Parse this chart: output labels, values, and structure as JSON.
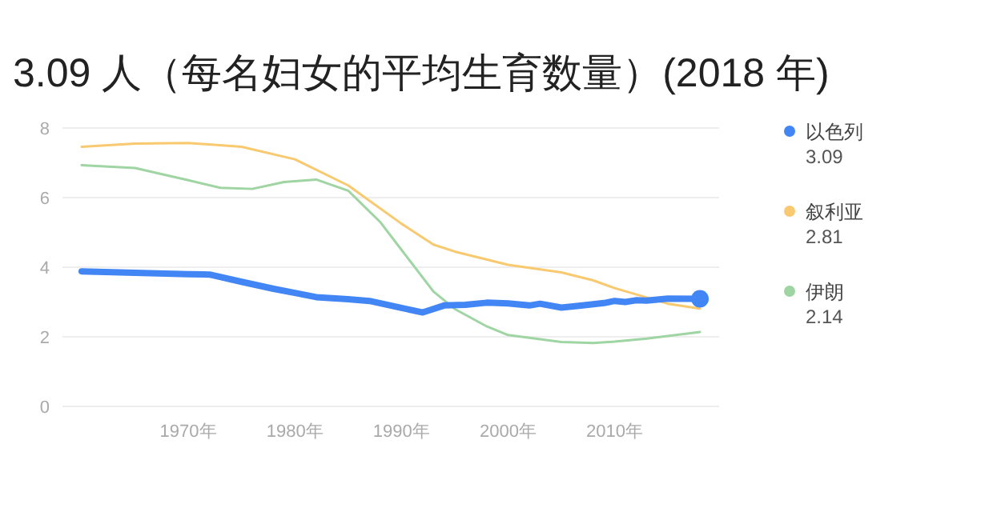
{
  "chart_data": {
    "type": "line",
    "title": "3.09 人（每名妇女的平均生育数量）(2018 年)",
    "xlim": [
      1958.2,
      2019.8
    ],
    "xticks": [
      {
        "value": 1970,
        "label": "1970年"
      },
      {
        "value": 1980,
        "label": "1980年"
      },
      {
        "value": 1990,
        "label": "1990年"
      },
      {
        "value": 2000,
        "label": "2000年"
      },
      {
        "value": 2010,
        "label": "2010年"
      }
    ],
    "ylim": [
      0,
      8
    ],
    "yticks": [
      0,
      2,
      4,
      6,
      8
    ],
    "grid": "y",
    "legend": "right",
    "series": [
      {
        "name": "以色列",
        "color": "#4285f4",
        "x": [
          1960,
          1965,
          1970,
          1972,
          1975,
          1978,
          1980,
          1982,
          1985,
          1987,
          1990,
          1992,
          1994,
          1996,
          1998,
          2000,
          2002,
          2003,
          2005,
          2007,
          2009,
          2010,
          2011,
          2012,
          2013,
          2015,
          2018
        ],
        "values": [
          3.88,
          3.84,
          3.8,
          3.79,
          3.58,
          3.38,
          3.26,
          3.14,
          3.08,
          3.03,
          2.83,
          2.7,
          2.9,
          2.92,
          2.98,
          2.96,
          2.9,
          2.95,
          2.84,
          2.9,
          2.97,
          3.03,
          3.0,
          3.05,
          3.04,
          3.1,
          3.09
        ]
      },
      {
        "name": "叙利亚",
        "color": "#f9c96f",
        "x": [
          1960,
          1965,
          1970,
          1975,
          1980,
          1985,
          1990,
          1993,
          1995,
          2000,
          2005,
          2008,
          2010,
          2015,
          2018
        ],
        "values": [
          7.46,
          7.55,
          7.57,
          7.46,
          7.1,
          6.35,
          5.25,
          4.65,
          4.45,
          4.07,
          3.85,
          3.62,
          3.4,
          2.95,
          2.81
        ]
      },
      {
        "name": "伊朗",
        "color": "#9fd4a3",
        "x": [
          1960,
          1965,
          1970,
          1973,
          1976,
          1979,
          1982,
          1985,
          1988,
          1990,
          1993,
          1995,
          1998,
          2000,
          2005,
          2008,
          2010,
          2013,
          2018
        ],
        "values": [
          6.93,
          6.85,
          6.5,
          6.28,
          6.25,
          6.45,
          6.52,
          6.2,
          5.3,
          4.5,
          3.3,
          2.8,
          2.3,
          2.05,
          1.85,
          1.82,
          1.86,
          1.95,
          2.14
        ]
      }
    ],
    "annotations": [
      "3.09",
      "2.81",
      "2.14"
    ]
  }
}
